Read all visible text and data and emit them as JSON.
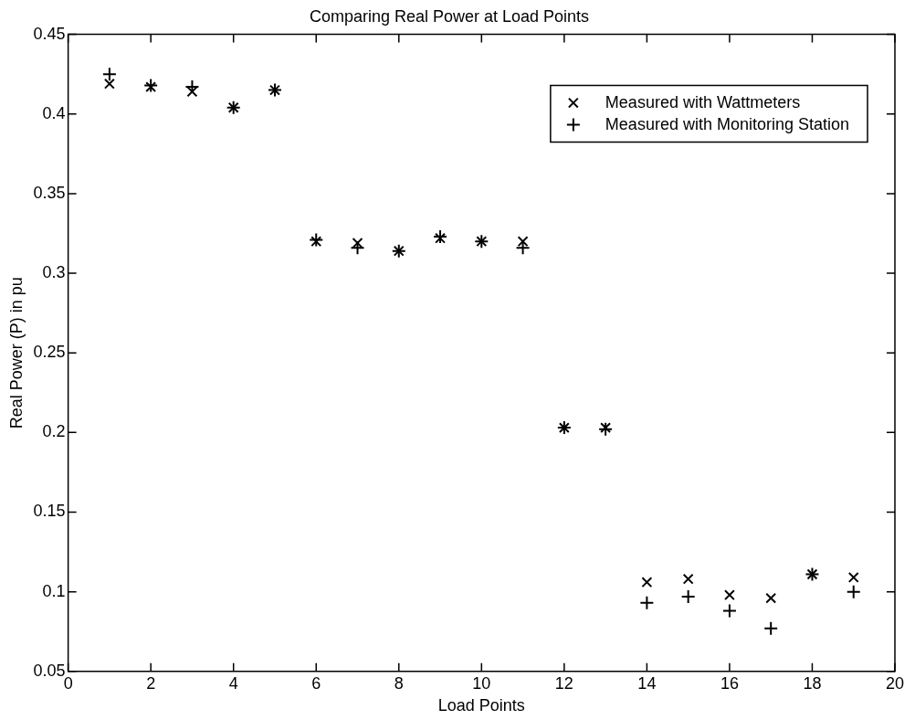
{
  "chart_data": {
    "type": "scatter",
    "title": "Comparing Real Power at Load Points",
    "xlabel": "Load Points",
    "ylabel": "Real Power (P) in pu",
    "x": [
      1,
      2,
      3,
      4,
      5,
      6,
      7,
      8,
      9,
      10,
      11,
      12,
      13,
      14,
      15,
      16,
      17,
      18,
      19
    ],
    "series": [
      {
        "name": "Measured with Wattmeters",
        "color": "#000000",
        "marker": "cross",
        "values": [
          0.419,
          0.417,
          0.414,
          0.404,
          0.415,
          0.32,
          0.319,
          0.314,
          0.322,
          0.32,
          0.32,
          0.203,
          0.203,
          0.106,
          0.108,
          0.098,
          0.096,
          0.111,
          0.109
        ]
      },
      {
        "name": "Measured with Monitoring Station",
        "color": "#000000",
        "marker": "cross",
        "values": [
          0.425,
          0.418,
          0.417,
          0.404,
          0.415,
          0.321,
          0.316,
          0.314,
          0.323,
          0.32,
          0.316,
          0.203,
          0.202,
          0.093,
          0.097,
          0.088,
          0.077,
          0.111,
          0.1
        ]
      }
    ],
    "xlim": [
      0,
      20
    ],
    "xticks": [
      0,
      2,
      4,
      6,
      8,
      10,
      12,
      14,
      16,
      18,
      20
    ],
    "ylim": [
      0.05,
      0.45
    ],
    "yticks": [
      0.05,
      0.1,
      0.15,
      0.2,
      0.25,
      0.3,
      0.35,
      0.4,
      0.45
    ],
    "grid": false,
    "legend": "top right"
  }
}
